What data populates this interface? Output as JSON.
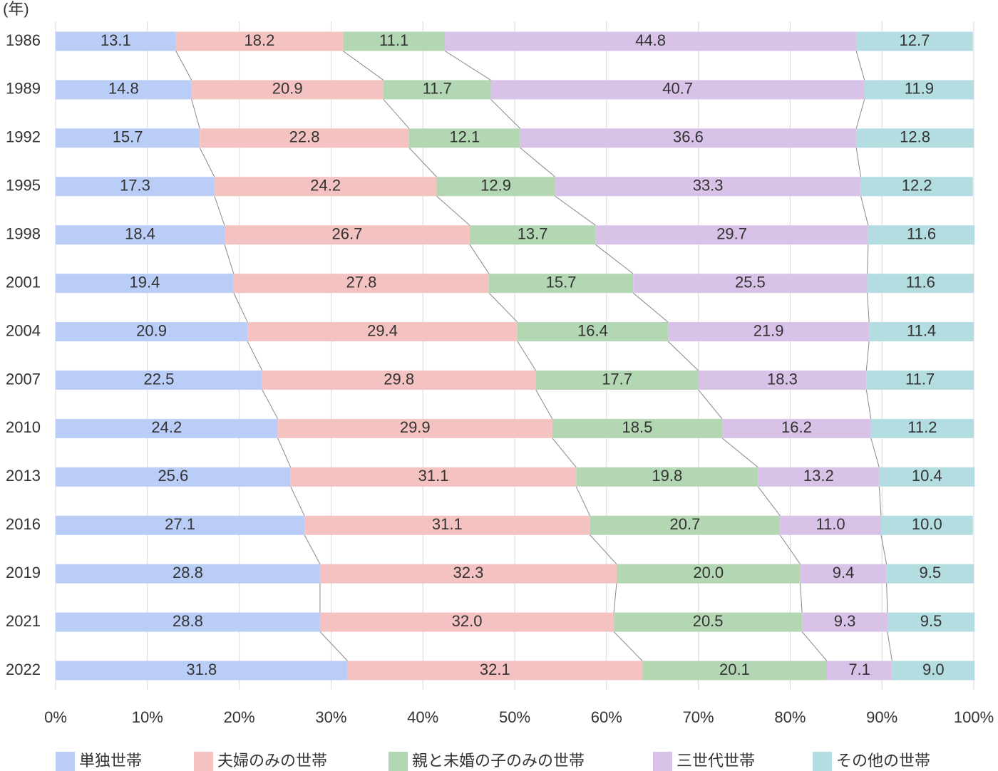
{
  "chart_data": {
    "type": "stacked-barh",
    "y_label": "(年)",
    "categories": [
      "1986",
      "1989",
      "1992",
      "1995",
      "1998",
      "2001",
      "2004",
      "2007",
      "2010",
      "2013",
      "2016",
      "2019",
      "2021",
      "2022"
    ],
    "series": [
      {
        "name": "単独世帯",
        "color": "#b9cdf7",
        "values": [
          13.1,
          14.8,
          15.7,
          17.3,
          18.4,
          19.4,
          20.9,
          22.5,
          24.2,
          25.6,
          27.1,
          28.8,
          28.8,
          31.8
        ],
        "value_labels": [
          "13.1",
          "14.8",
          "15.7",
          "17.3",
          "18.4",
          "19.4",
          "20.9",
          "22.5",
          "24.2",
          "25.6",
          "27.1",
          "28.8",
          "28.8",
          "31.8"
        ]
      },
      {
        "name": "夫婦のみの世帯",
        "color": "#f5c2c2",
        "values": [
          18.2,
          20.9,
          22.8,
          24.2,
          26.7,
          27.8,
          29.4,
          29.8,
          29.9,
          31.1,
          31.1,
          32.3,
          32.0,
          32.1
        ],
        "value_labels": [
          "18.2",
          "20.9",
          "22.8",
          "24.2",
          "26.7",
          "27.8",
          "29.4",
          "29.8",
          "29.9",
          "31.1",
          "31.1",
          "32.3",
          "32.0",
          "32.1"
        ]
      },
      {
        "name": "親と未婚の子のみの世帯",
        "color": "#b3d6b3",
        "values": [
          11.1,
          11.7,
          12.1,
          12.9,
          13.7,
          15.7,
          16.4,
          17.7,
          18.5,
          19.8,
          20.7,
          20.0,
          20.5,
          20.1
        ],
        "value_labels": [
          "11.1",
          "11.7",
          "12.1",
          "12.9",
          "13.7",
          "15.7",
          "16.4",
          "17.7",
          "18.5",
          "19.8",
          "20.7",
          "20.0",
          "20.5",
          "20.1"
        ]
      },
      {
        "name": "三世代世帯",
        "color": "#d8c2e8",
        "values": [
          44.8,
          40.7,
          36.6,
          33.3,
          29.7,
          25.5,
          21.9,
          18.3,
          16.2,
          13.2,
          11.0,
          9.4,
          9.3,
          7.1
        ],
        "value_labels": [
          "44.8",
          "40.7",
          "36.6",
          "33.3",
          "29.7",
          "25.5",
          "21.9",
          "18.3",
          "16.2",
          "13.2",
          "11.0",
          "9.4",
          "9.3",
          "7.1"
        ]
      },
      {
        "name": "その他の世帯",
        "color": "#b3dde0",
        "values": [
          12.7,
          11.9,
          12.8,
          12.2,
          11.6,
          11.6,
          11.4,
          11.7,
          11.2,
          10.4,
          10.0,
          9.5,
          9.5,
          9.0
        ],
        "value_labels": [
          "12.7",
          "11.9",
          "12.8",
          "12.2",
          "11.6",
          "11.6",
          "11.4",
          "11.7",
          "11.2",
          "10.4",
          "10.0",
          "9.5",
          "9.5",
          "9.0"
        ]
      }
    ],
    "xlim": [
      0,
      100
    ],
    "xticks": [
      {
        "value": 0,
        "label": "0%"
      },
      {
        "value": 10,
        "label": "10%"
      },
      {
        "value": 20,
        "label": "20%"
      },
      {
        "value": 30,
        "label": "30%"
      },
      {
        "value": 40,
        "label": "40%"
      },
      {
        "value": 50,
        "label": "50%"
      },
      {
        "value": 60,
        "label": "60%"
      },
      {
        "value": 70,
        "label": "70%"
      },
      {
        "value": 80,
        "label": "80%"
      },
      {
        "value": 90,
        "label": "90%"
      },
      {
        "value": 100,
        "label": "100%"
      }
    ],
    "grid": true
  }
}
